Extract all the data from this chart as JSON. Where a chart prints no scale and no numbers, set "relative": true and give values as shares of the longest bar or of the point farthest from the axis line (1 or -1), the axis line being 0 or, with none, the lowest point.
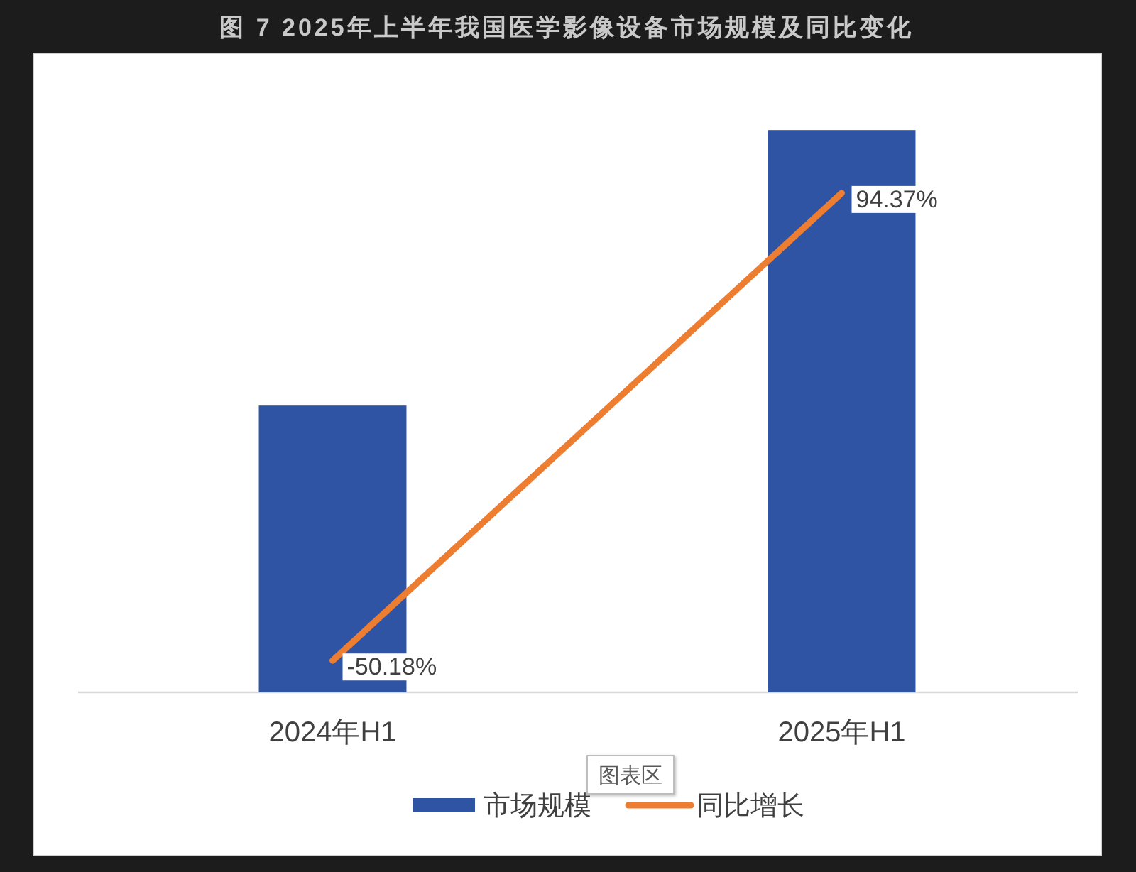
{
  "chart_data": [
    {
      "type": "bar",
      "title": "图 7 2025年上半年我国医学影像设备市场规模及同比变化",
      "categories": [
        "2024年H1",
        "2025年H1"
      ],
      "relative": true,
      "legend": "bottom",
      "annotations": [
        "图表区"
      ],
      "series": [
        {
          "name": "市场规模",
          "color": "#2e54a3",
          "values": [
            0.51,
            1
          ]
        }
      ]
    },
    {
      "type": "line",
      "categories": [
        "2024年H1",
        "2025年H1"
      ],
      "tick_labels": false,
      "legend": "bottom",
      "series": [
        {
          "name": "同比增长",
          "color": "#ed7d31",
          "values": [
            -50.18,
            94.37
          ],
          "value_labels": [
            "-50.18%",
            "94.37%"
          ]
        }
      ]
    }
  ]
}
